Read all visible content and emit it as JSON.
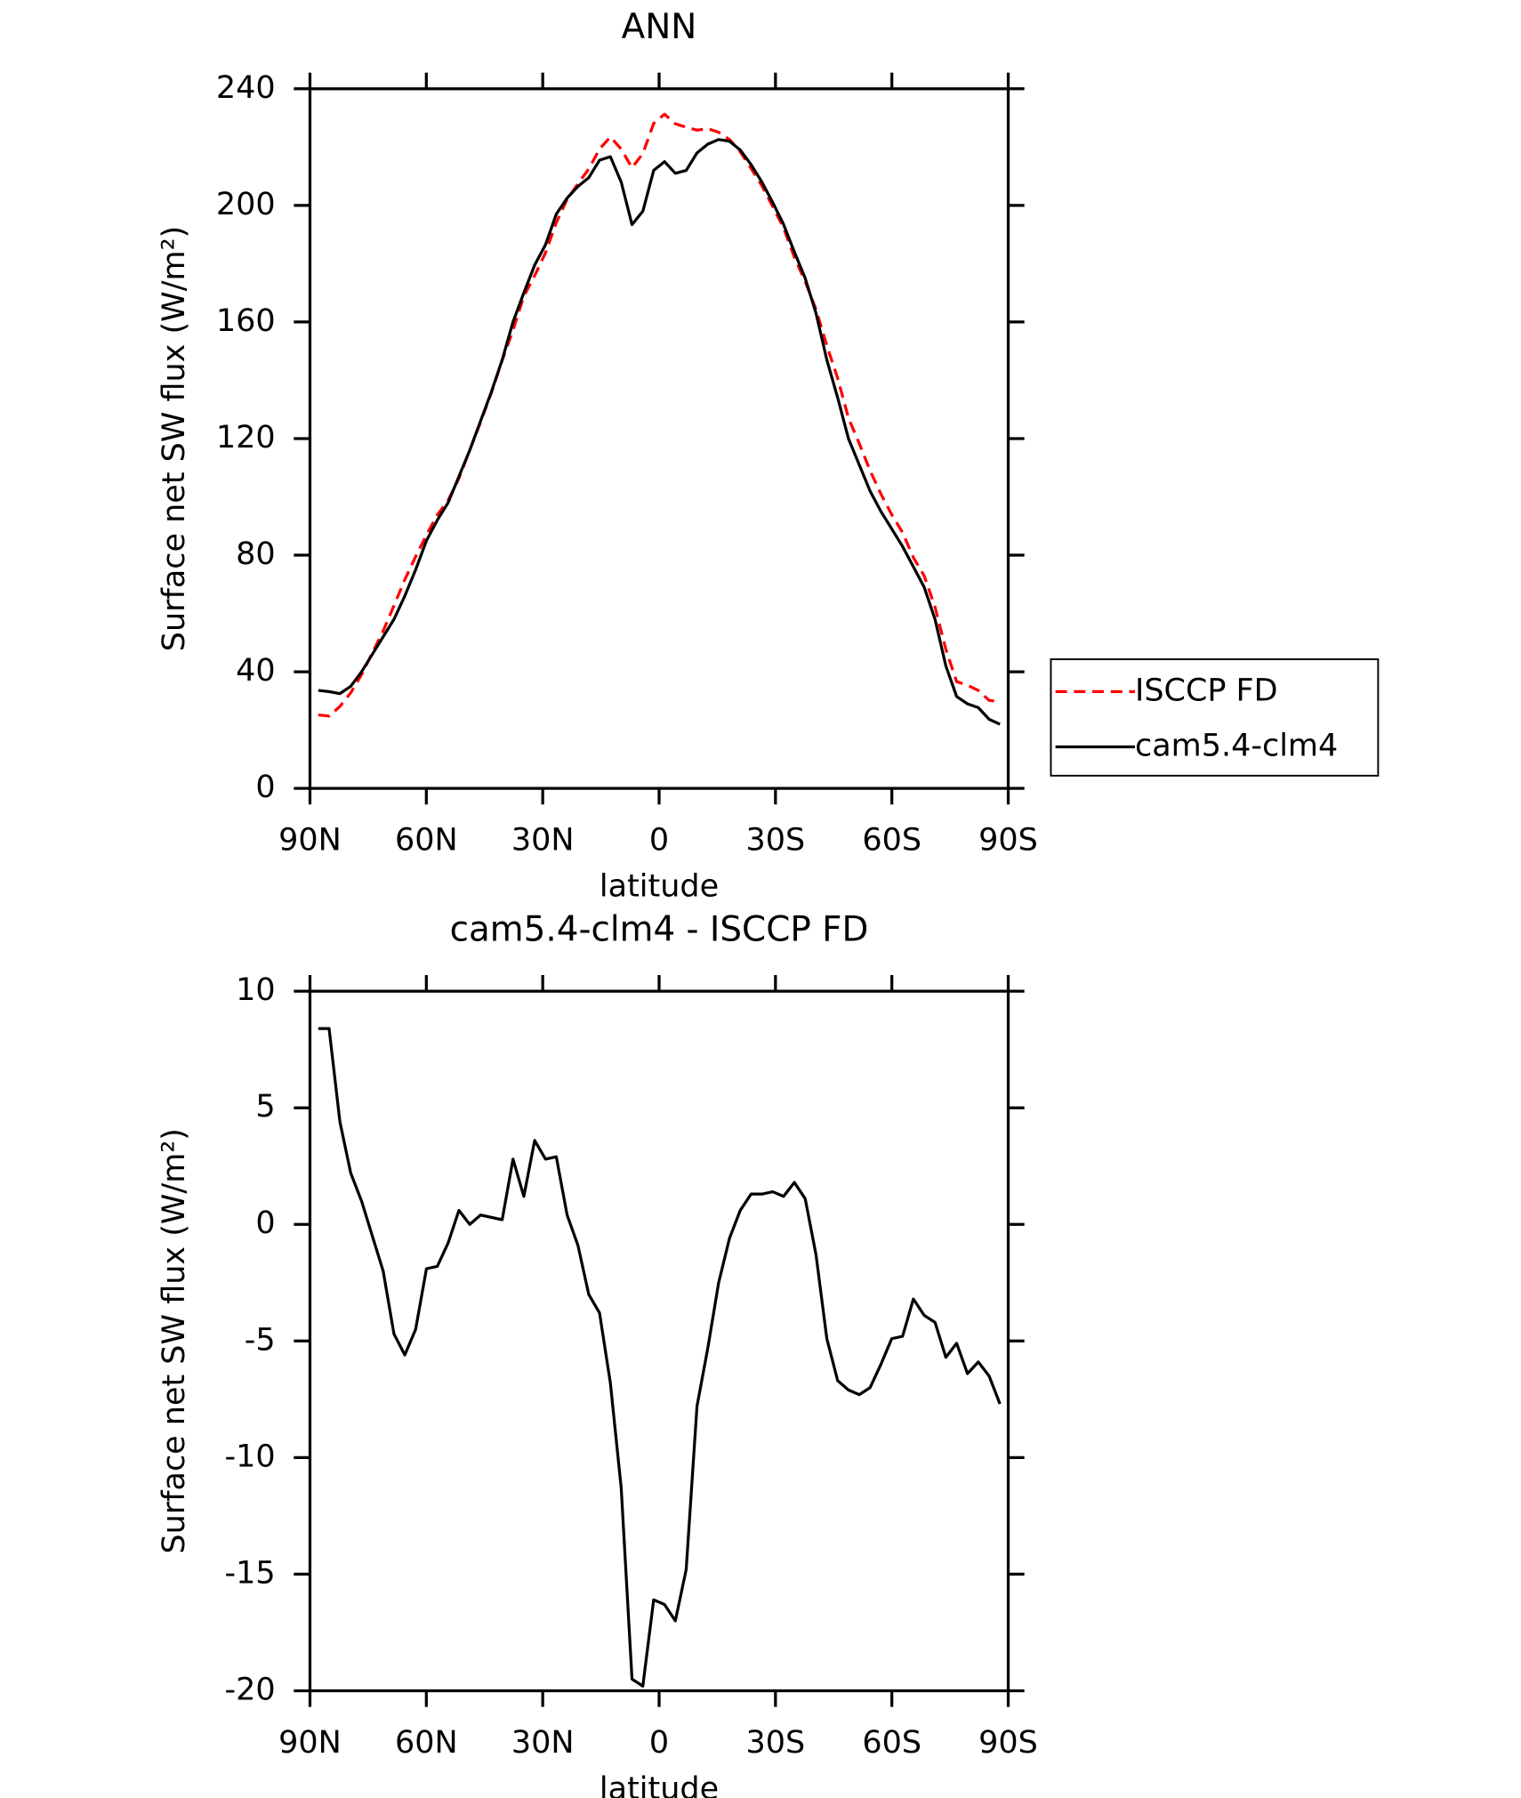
{
  "chart_data": [
    {
      "type": "line",
      "title": "ANN",
      "xlabel": "latitude",
      "ylabel": "Surface net SW flux (W/m²)",
      "x": [
        87.86,
        85.07,
        82.28,
        79.49,
        76.7,
        73.92,
        71.13,
        68.34,
        65.55,
        62.76,
        59.97,
        57.18,
        54.39,
        51.6,
        48.81,
        46.03,
        43.24,
        40.45,
        37.66,
        34.87,
        32.08,
        29.29,
        26.5,
        23.71,
        20.92,
        18.14,
        15.35,
        12.56,
        9.77,
        6.98,
        4.19,
        1.4,
        -1.4,
        -4.19,
        -6.98,
        -9.77,
        -12.56,
        -15.35,
        -18.14,
        -20.92,
        -23.71,
        -26.5,
        -29.29,
        -32.08,
        -34.87,
        -37.66,
        -40.45,
        -43.24,
        -46.03,
        -48.81,
        -51.6,
        -54.39,
        -57.18,
        -59.97,
        -62.76,
        -65.55,
        -68.34,
        -71.13,
        -73.92,
        -76.7,
        -79.49,
        -82.28,
        -85.07,
        -87.86
      ],
      "series": [
        {
          "name": "ISCCP FD",
          "color": "#ff0000",
          "dash": true,
          "values": [
            25.2,
            24.8,
            28.1,
            32.8,
            39,
            46.5,
            54,
            62.7,
            71.6,
            79.5,
            86.9,
            93.8,
            98.8,
            106.4,
            116,
            125.6,
            135.7,
            146.8,
            157.2,
            168.8,
            175.9,
            183.7,
            194.1,
            202.1,
            207.4,
            212.5,
            219.3,
            223.5,
            219.3,
            212.9,
            217.8,
            228.1,
            231.3,
            228,
            226.8,
            225.8,
            226.3,
            225.1,
            222.6,
            218.4,
            212.7,
            206.7,
            199.6,
            192.3,
            182.2,
            173.9,
            164.3,
            151.9,
            140.7,
            127.1,
            118.3,
            109,
            101,
            93.9,
            87.8,
            79.2,
            72.9,
            62.2,
            47.7,
            36.6,
            35.4,
            33.6,
            30.2,
            29.7
          ]
        },
        {
          "name": "cam5.4-clm4",
          "color": "#000000",
          "dash": false,
          "values": [
            33.6,
            33.2,
            32.5,
            35,
            40,
            46,
            52,
            58,
            66,
            75,
            85,
            92,
            98,
            107,
            116,
            126,
            136,
            147,
            160,
            170,
            179.5,
            186.5,
            197,
            202.5,
            206.5,
            209.5,
            215.5,
            216.7,
            208,
            193.4,
            198,
            212,
            215,
            211,
            212,
            218,
            221,
            222.6,
            222,
            219,
            214,
            208,
            201,
            193.5,
            184,
            175,
            163,
            147,
            134,
            120,
            111,
            102,
            95,
            89,
            83,
            76,
            69,
            58,
            42,
            31.5,
            29,
            27.7,
            23.7,
            22
          ]
        }
      ],
      "xlim": [
        90,
        -90
      ],
      "xticks": [
        {
          "value": 90,
          "label": "90N"
        },
        {
          "value": 60,
          "label": "60N"
        },
        {
          "value": 30,
          "label": "30N"
        },
        0,
        {
          "value": -30,
          "label": "30S"
        },
        {
          "value": -60,
          "label": "60S"
        },
        {
          "value": -90,
          "label": "90S"
        }
      ],
      "ylim": [
        0,
        240
      ],
      "yticks": [
        0,
        40,
        80,
        120,
        160,
        200,
        240
      ],
      "legend": "right"
    },
    {
      "type": "line",
      "title": "cam5.4-clm4 - ISCCP FD",
      "xlabel": "latitude",
      "ylabel": "Surface net SW flux (W/m²)",
      "x": [
        87.86,
        85.07,
        82.28,
        79.49,
        76.7,
        73.92,
        71.13,
        68.34,
        65.55,
        62.76,
        59.97,
        57.18,
        54.39,
        51.6,
        48.81,
        46.03,
        43.24,
        40.45,
        37.66,
        34.87,
        32.08,
        29.29,
        26.5,
        23.71,
        20.92,
        18.14,
        15.35,
        12.56,
        9.77,
        6.98,
        4.19,
        1.4,
        -1.4,
        -4.19,
        -6.98,
        -9.77,
        -12.56,
        -15.35,
        -18.14,
        -20.92,
        -23.71,
        -26.5,
        -29.29,
        -32.08,
        -34.87,
        -37.66,
        -40.45,
        -43.24,
        -46.03,
        -48.81,
        -51.6,
        -54.39,
        -57.18,
        -59.97,
        -62.76,
        -65.55,
        -68.34,
        -71.13,
        -73.92,
        -76.7,
        -79.49,
        -82.28,
        -85.07,
        -87.86
      ],
      "series": [
        {
          "color": "#000000",
          "dash": false,
          "values": [
            8.4,
            8.4,
            4.4,
            2.2,
            1.0,
            -0.5,
            -2.0,
            -4.7,
            -5.6,
            -4.5,
            -1.9,
            -1.8,
            -0.8,
            0.6,
            0.0,
            0.4,
            0.3,
            0.2,
            2.8,
            1.2,
            3.6,
            2.8,
            2.9,
            0.4,
            -0.9,
            -3.0,
            -3.8,
            -6.8,
            -11.3,
            -19.5,
            -19.8,
            -16.1,
            -16.3,
            -17.0,
            -14.8,
            -7.8,
            -5.3,
            -2.5,
            -0.6,
            0.6,
            1.3,
            1.3,
            1.4,
            1.2,
            1.8,
            1.1,
            -1.3,
            -4.9,
            -6.7,
            -7.1,
            -7.3,
            -7.0,
            -6.0,
            -4.9,
            -4.8,
            -3.2,
            -3.9,
            -4.2,
            -5.7,
            -5.1,
            -6.4,
            -5.9,
            -6.5,
            -7.7
          ]
        }
      ],
      "xlim": [
        90,
        -90
      ],
      "xticks": [
        {
          "value": 90,
          "label": "90N"
        },
        {
          "value": 60,
          "label": "60N"
        },
        {
          "value": 30,
          "label": "30N"
        },
        0,
        {
          "value": -30,
          "label": "30S"
        },
        {
          "value": -60,
          "label": "60S"
        },
        {
          "value": -90,
          "label": "90S"
        }
      ],
      "ylim": [
        -20,
        10
      ],
      "yticks": [
        -20,
        -15,
        -10,
        -5,
        0,
        5,
        10
      ]
    }
  ]
}
